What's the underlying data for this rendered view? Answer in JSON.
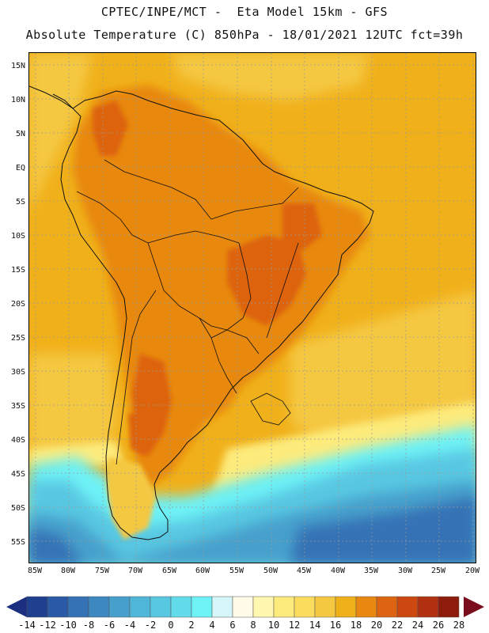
{
  "header": {
    "line1": "CPTEC/INPE/MCT -  Eta Model 15km - GFS",
    "line2": "Absolute Temperature (C) 850hPa - 18/01/2021 12UTC fct=39h"
  },
  "axes": {
    "lat_labels": [
      "15N",
      "10N",
      "5N",
      "EQ",
      "5S",
      "10S",
      "15S",
      "20S",
      "25S",
      "30S",
      "35S",
      "40S",
      "45S",
      "50S",
      "55S"
    ],
    "lon_labels": [
      "85W",
      "80W",
      "75W",
      "70W",
      "65W",
      "60W",
      "55W",
      "50W",
      "45W",
      "40W",
      "35W",
      "30W",
      "25W",
      "20W"
    ]
  },
  "colorbar": {
    "labels": [
      "-14",
      "-12",
      "-10",
      "-8",
      "-6",
      "-4",
      "-2",
      "0",
      "2",
      "4",
      "6",
      "8",
      "10",
      "12",
      "14",
      "16",
      "18",
      "20",
      "22",
      "24",
      "26",
      "28"
    ],
    "colors": [
      "#1f3f8f",
      "#2a5aa6",
      "#3472b5",
      "#3d88c0",
      "#47a0cc",
      "#4fb6d8",
      "#58c8e2",
      "#62dbea",
      "#6ef2f6",
      "#d6f6fa",
      "#fffbe6",
      "#fff7b0",
      "#fdeb7c",
      "#fbdc5c",
      "#f5c842",
      "#f0b01a",
      "#e88810",
      "#dd6410",
      "#cc4810",
      "#b03010",
      "#8e1c0c"
    ],
    "under_color": "#1a2f80",
    "over_color": "#7a0e1e"
  },
  "colors": {
    "warm_orange": "#f0b01a",
    "yellow_orange": "#f5c842",
    "dark_orange": "#e88810",
    "hot": "#dd6410",
    "pale_yellow": "#fdeb7c",
    "cyan": "#6ef2f6",
    "light_blue": "#58c8e2",
    "blue": "#47a0cc",
    "deep_blue": "#3472b5"
  }
}
